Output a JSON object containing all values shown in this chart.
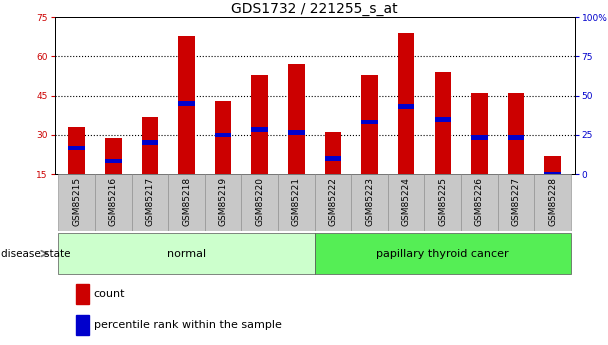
{
  "title": "GDS1732 / 221255_s_at",
  "samples": [
    "GSM85215",
    "GSM85216",
    "GSM85217",
    "GSM85218",
    "GSM85219",
    "GSM85220",
    "GSM85221",
    "GSM85222",
    "GSM85223",
    "GSM85224",
    "GSM85225",
    "GSM85226",
    "GSM85227",
    "GSM85228"
  ],
  "counts": [
    33,
    29,
    37,
    68,
    43,
    53,
    57,
    31,
    53,
    69,
    54,
    46,
    46,
    22
  ],
  "percentile_values": [
    25,
    20,
    27,
    42,
    30,
    32,
    31,
    21,
    35,
    41,
    36,
    29,
    29,
    15
  ],
  "bar_color": "#CC0000",
  "blue_color": "#0000CC",
  "bar_width": 0.45,
  "ylim": [
    15,
    75
  ],
  "yticks_left": [
    15,
    30,
    45,
    60,
    75
  ],
  "yticks_right_pct": [
    0,
    25,
    50,
    75,
    100
  ],
  "normal_label": "normal",
  "cancer_label": "papillary thyroid cancer",
  "normal_bg": "#CCFFCC",
  "cancer_bg": "#55EE55",
  "xtick_bg": "#C8C8C8",
  "disease_state_label": "disease state",
  "legend_count_label": "count",
  "legend_percentile_label": "percentile rank within the sample",
  "title_fontsize": 10,
  "tick_fontsize": 6.5,
  "group_label_fontsize": 8,
  "legend_fontsize": 8
}
